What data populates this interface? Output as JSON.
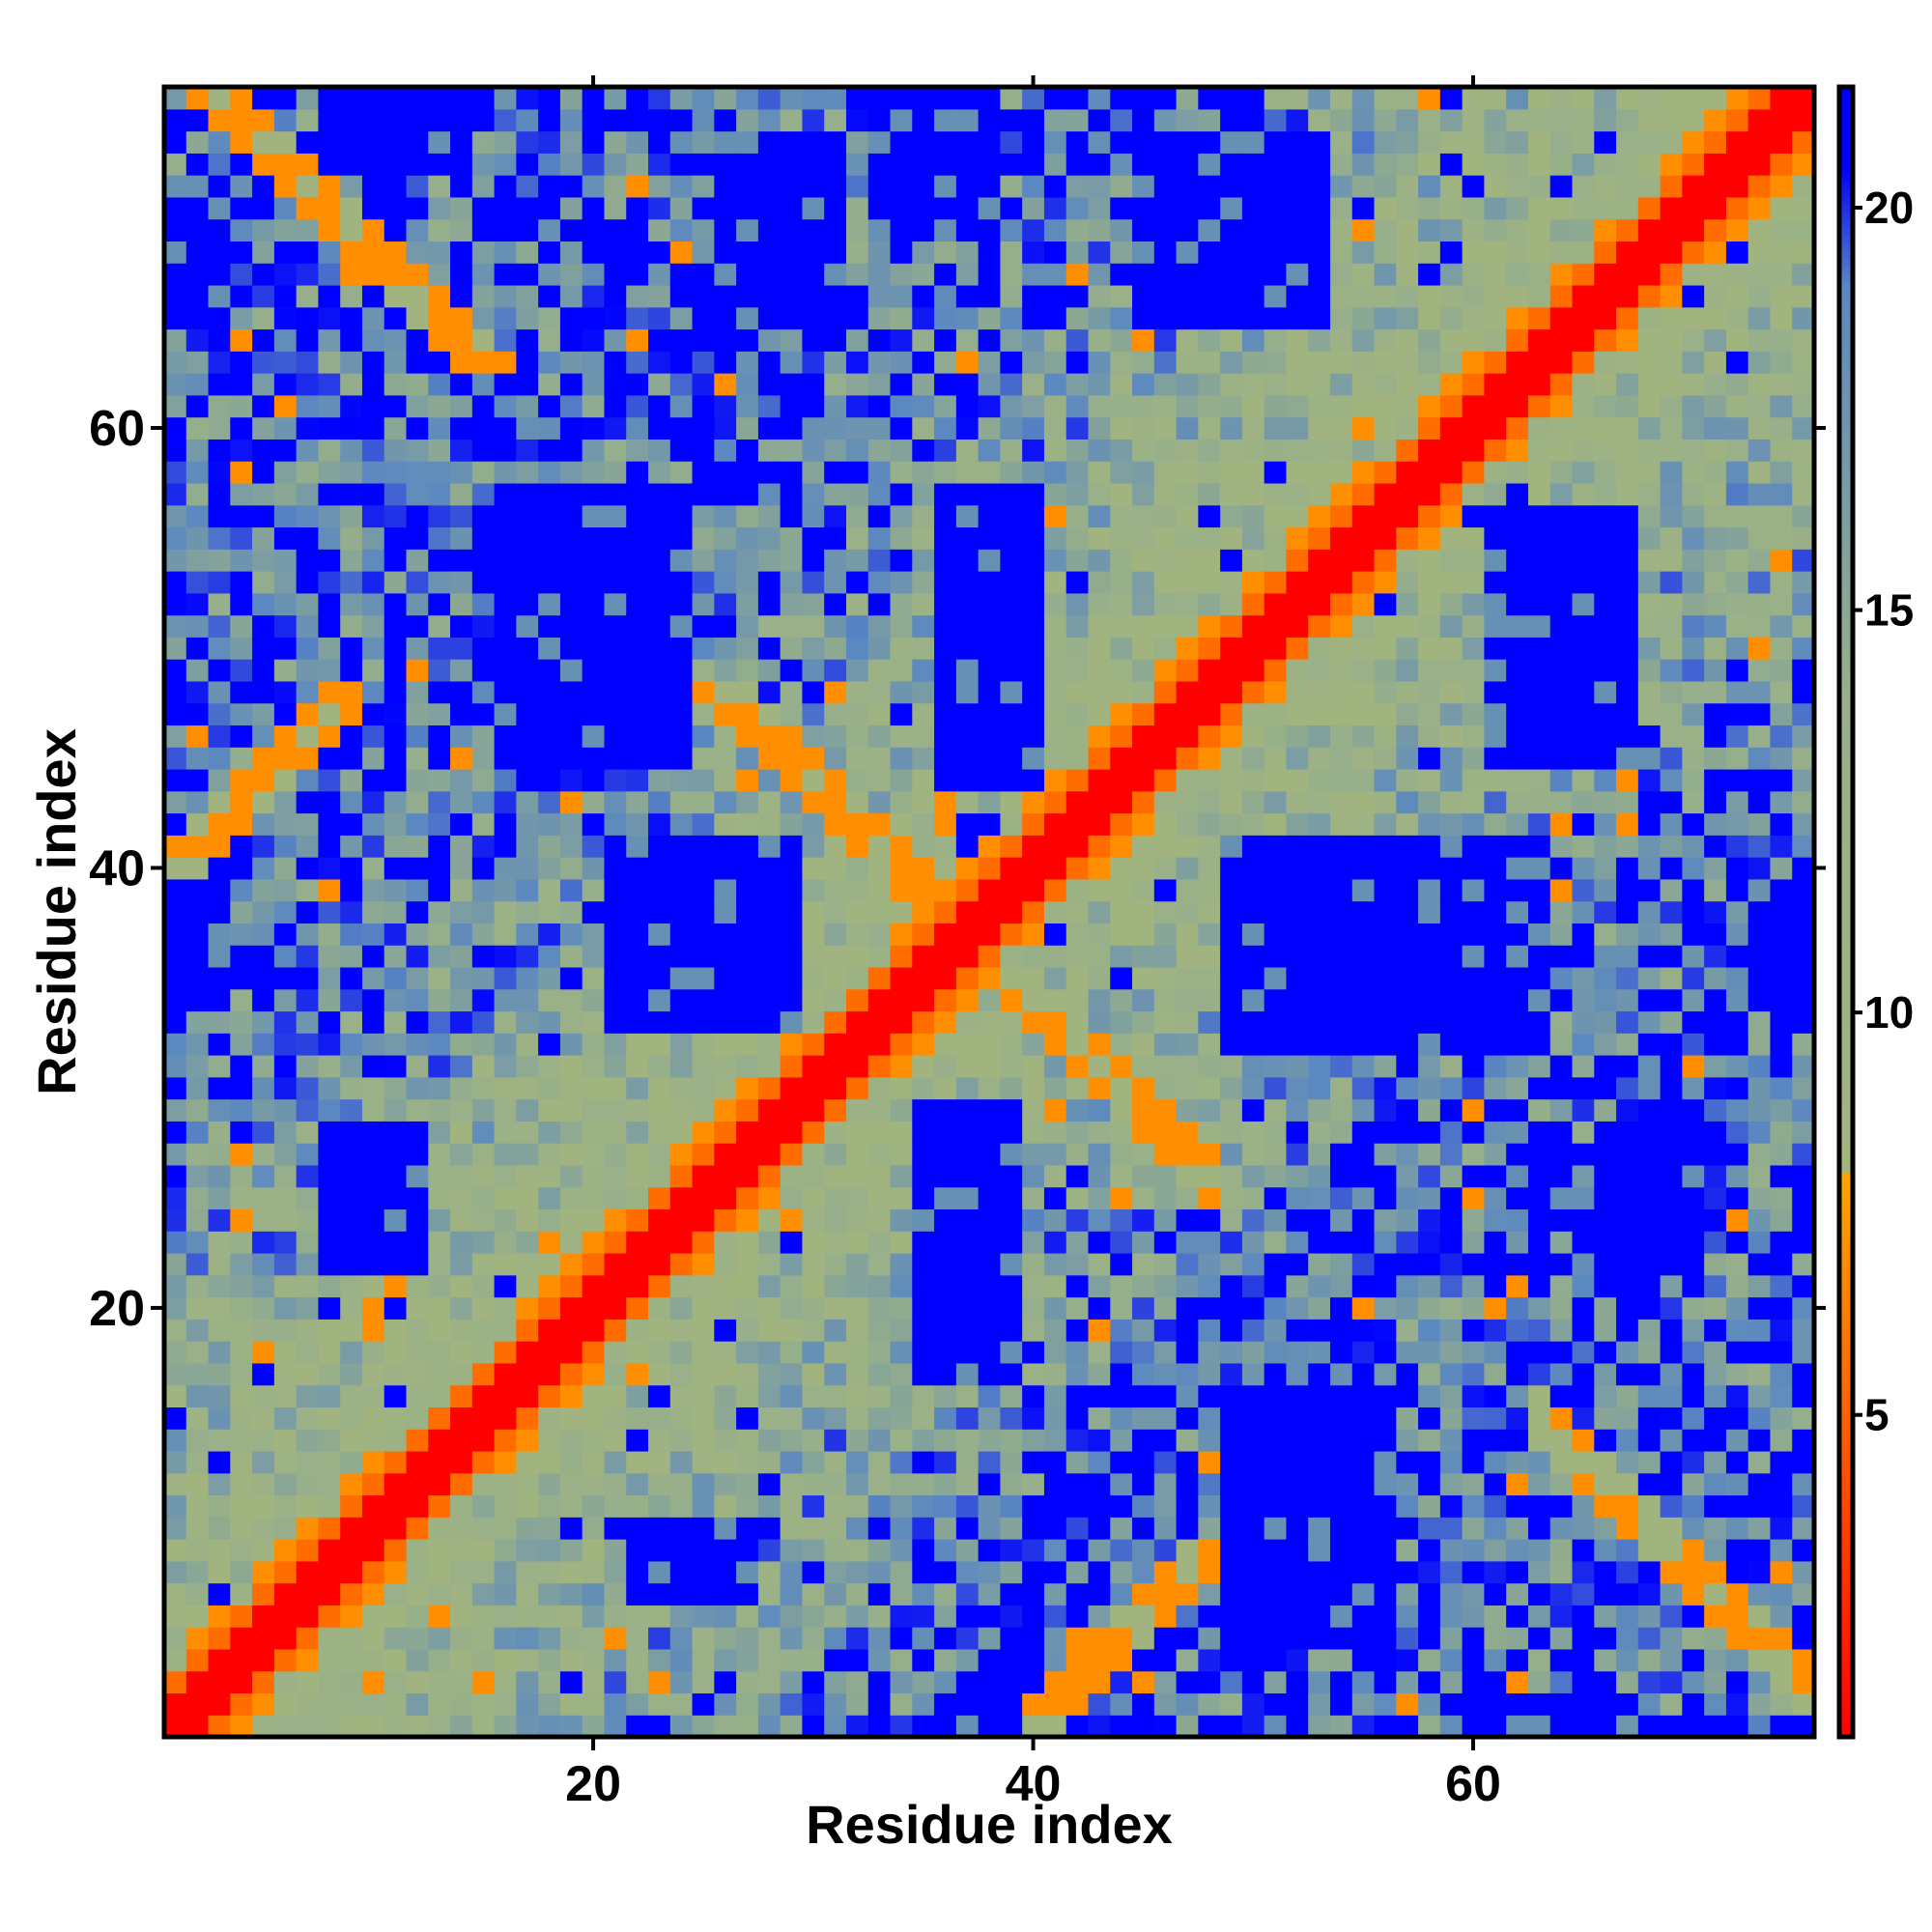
{
  "chart_data": {
    "type": "heatmap",
    "title": "",
    "xlabel": "Residue index",
    "ylabel": "Residue index",
    "n_residues": 75,
    "xlim": [
      1,
      75
    ],
    "ylim": [
      1,
      75
    ],
    "x_ticks": [
      20,
      40,
      60
    ],
    "x_tick_labels": [
      "20",
      "40",
      "60"
    ],
    "y_ticks": [
      20,
      40,
      60
    ],
    "y_tick_labels": [
      "20",
      "40",
      "60"
    ],
    "colorbar": {
      "range": [
        1,
        21.5
      ],
      "ticks": [
        5,
        10,
        15,
        20
      ],
      "tick_labels": [
        "5",
        "10",
        "15",
        "20"
      ],
      "stops": [
        {
          "value": 1,
          "color": "#ff0000"
        },
        {
          "value": 4.5,
          "color": "#ff5500"
        },
        {
          "value": 8,
          "color": "#ffa500"
        },
        {
          "value": 8.01,
          "color": "#a3b57e"
        },
        {
          "value": 14,
          "color": "#97af8a"
        },
        {
          "value": 19,
          "color": "#5b88c0"
        },
        {
          "value": 20.5,
          "color": "#0000ff"
        },
        {
          "value": 21.5,
          "color": "#0000ff"
        }
      ]
    },
    "contact_structure": {
      "main_diagonal": "values near 1 along i = j",
      "antiparallel_contacts": [
        {
          "i_range": [
            2,
            16
          ],
          "j_range": [
            63,
            75
          ],
          "value": 7
        },
        {
          "i_range": [
            25,
            38
          ],
          "j_range": [
            37,
            48
          ],
          "value": 7
        },
        {
          "i_range": [
            38,
            48
          ],
          "j_range": [
            25,
            37
          ],
          "value": 7
        },
        {
          "i_range": [
            63,
            75
          ],
          "j_range": [
            2,
            16
          ],
          "value": 7
        }
      ],
      "parallel_contacts": [
        {
          "i_range": [
            1,
            9
          ],
          "j_range": [
            40,
            48
          ],
          "value": 7
        },
        {
          "i_range": [
            40,
            48
          ],
          "j_range": [
            1,
            9
          ],
          "value": 7
        }
      ],
      "far_blocks": [
        {
          "x": [
            36,
            40
          ],
          "y": [
            44,
            57
          ],
          "value": 21
        },
        {
          "x": [
            16,
            24
          ],
          "y": [
            45,
            57
          ],
          "value": 21
        },
        {
          "x": [
            21,
            29
          ],
          "y": [
            33,
            41
          ],
          "value": 21
        },
        {
          "x": [
            49,
            63
          ],
          "y": [
            32,
            41
          ],
          "value": 21
        },
        {
          "x": [
            35,
            39
          ],
          "y": [
            17,
            29
          ],
          "value": 21
        },
        {
          "x": [
            8,
            12
          ],
          "y": [
            22,
            28
          ],
          "value": 21
        },
        {
          "x": [
            49,
            56
          ],
          "y": [
            5,
            16
          ],
          "value": 21
        },
        {
          "x": [
            61,
            67
          ],
          "y": [
            45,
            56
          ],
          "value": 21
        },
        {
          "x": [
            22,
            27
          ],
          "y": [
            7,
            10
          ],
          "value": 21
        },
        {
          "x": [
            45,
            53
          ],
          "y": [
            65,
            73
          ],
          "value": 21
        },
        {
          "x": [
            26,
            31
          ],
          "y": [
            65,
            73
          ],
          "value": 21
        },
        {
          "x": [
            66,
            70
          ],
          "y": [
            22,
            28
          ],
          "value": 21
        },
        {
          "x": [
            8,
            14
          ],
          "y": [
            72,
            75
          ],
          "value": 21
        },
        {
          "x": [
            33,
            38
          ],
          "y": [
            69,
            75
          ],
          "value": 21
        },
        {
          "x": [
            36,
            40
          ],
          "y": [
            1,
            3
          ],
          "value": 21
        },
        {
          "x": [
            1,
            3
          ],
          "y": [
            65,
            71
          ],
          "value": 21
        },
        {
          "x": [
            1,
            3
          ],
          "y": [
            34,
            40
          ],
          "value": 21
        },
        {
          "x": [
            73,
            75
          ],
          "y": [
            34,
            38
          ],
          "value": 21
        },
        {
          "x": [
            60,
            66
          ],
          "y": [
            1,
            2
          ],
          "value": 21
        }
      ]
    }
  }
}
